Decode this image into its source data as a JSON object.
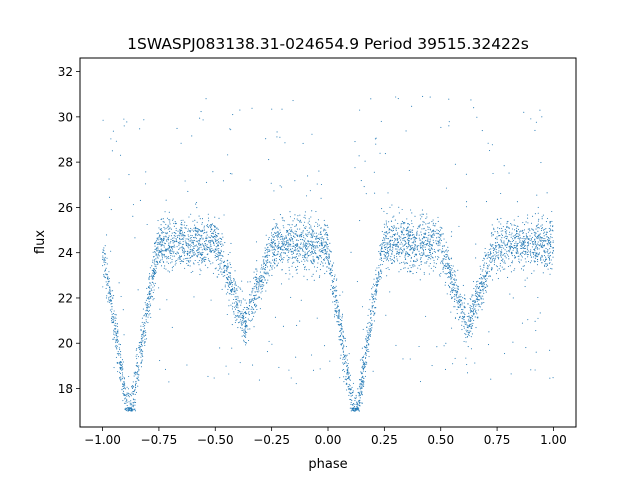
{
  "chart_data": {
    "type": "scatter",
    "title": "1SWASPJ083138.31-024654.9 Period 39515.32422s",
    "xlabel": "phase",
    "ylabel": "flux",
    "xlim": [
      -1.1,
      1.1
    ],
    "ylim": [
      16.3,
      32.6
    ],
    "grid": false,
    "marker_color": "#1f77b4",
    "x_ticks": [
      -1.0,
      -0.75,
      -0.5,
      -0.25,
      0.0,
      0.25,
      0.5,
      0.75,
      1.0
    ],
    "x_tick_labels": [
      "−1.00",
      "−0.75",
      "−0.50",
      "−0.25",
      "0.00",
      "0.25",
      "0.50",
      "0.75",
      "1.00"
    ],
    "y_ticks": [
      18,
      20,
      22,
      24,
      26,
      28,
      30,
      32
    ],
    "y_tick_labels": [
      "18",
      "20",
      "22",
      "24",
      "26",
      "28",
      "30",
      "32"
    ],
    "series": [
      {
        "x_range": [
          -1.0,
          1.0
        ],
        "baseline_flux": 24.4,
        "baseline_scatter": 0.55,
        "clip_range": [
          17.0,
          32.0
        ],
        "primary_eclipses": [
          {
            "phase_center": -0.88,
            "min_flux": 17.0,
            "half_width": 0.13
          },
          {
            "phase_center": 0.12,
            "min_flux": 17.0,
            "half_width": 0.13
          }
        ],
        "secondary_eclipses": [
          {
            "phase_center": -0.37,
            "min_flux": 21.0,
            "half_width": 0.13
          },
          {
            "phase_center": 0.62,
            "min_flux": 21.0,
            "half_width": 0.13
          }
        ]
      }
    ]
  }
}
